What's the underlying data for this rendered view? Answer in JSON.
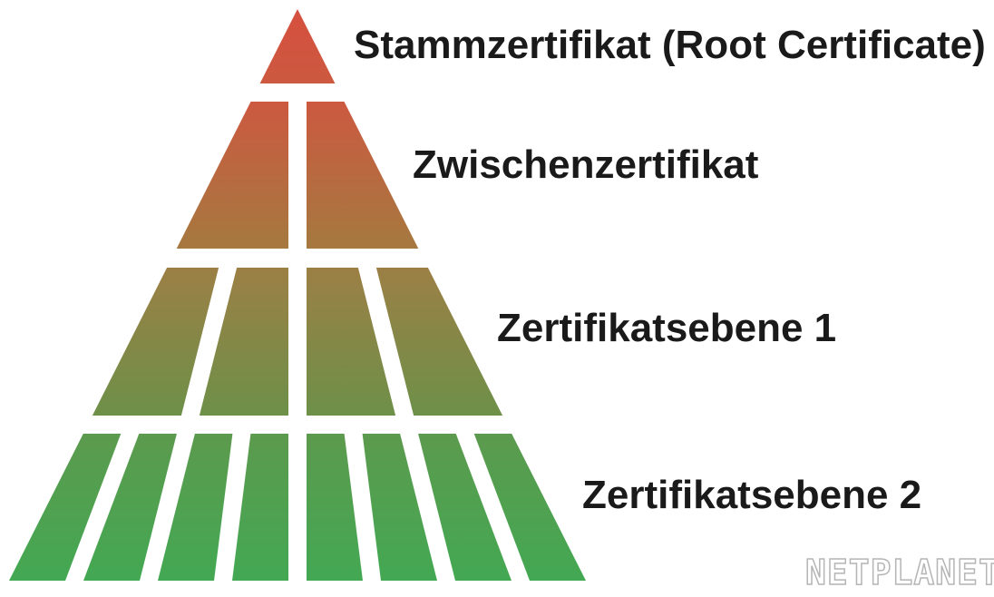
{
  "levels": [
    {
      "label": "Stammzertifikat (Root Certificate)",
      "segments": 1,
      "color_top": "#d64f3e",
      "color_bottom": "#cc5940"
    },
    {
      "label": "Zwischenzertifikat",
      "segments": 2,
      "color_top": "#cc5940",
      "color_bottom": "#a5793f"
    },
    {
      "label": "Zertifikatsebene 1",
      "segments": 4,
      "color_top": "#9c7f45",
      "color_bottom": "#6d9049"
    },
    {
      "label": "Zertifikatsebene 2",
      "segments": 8,
      "color_top": "#5c9a4e",
      "color_bottom": "#43a853"
    }
  ],
  "watermark": "NETPLANET"
}
